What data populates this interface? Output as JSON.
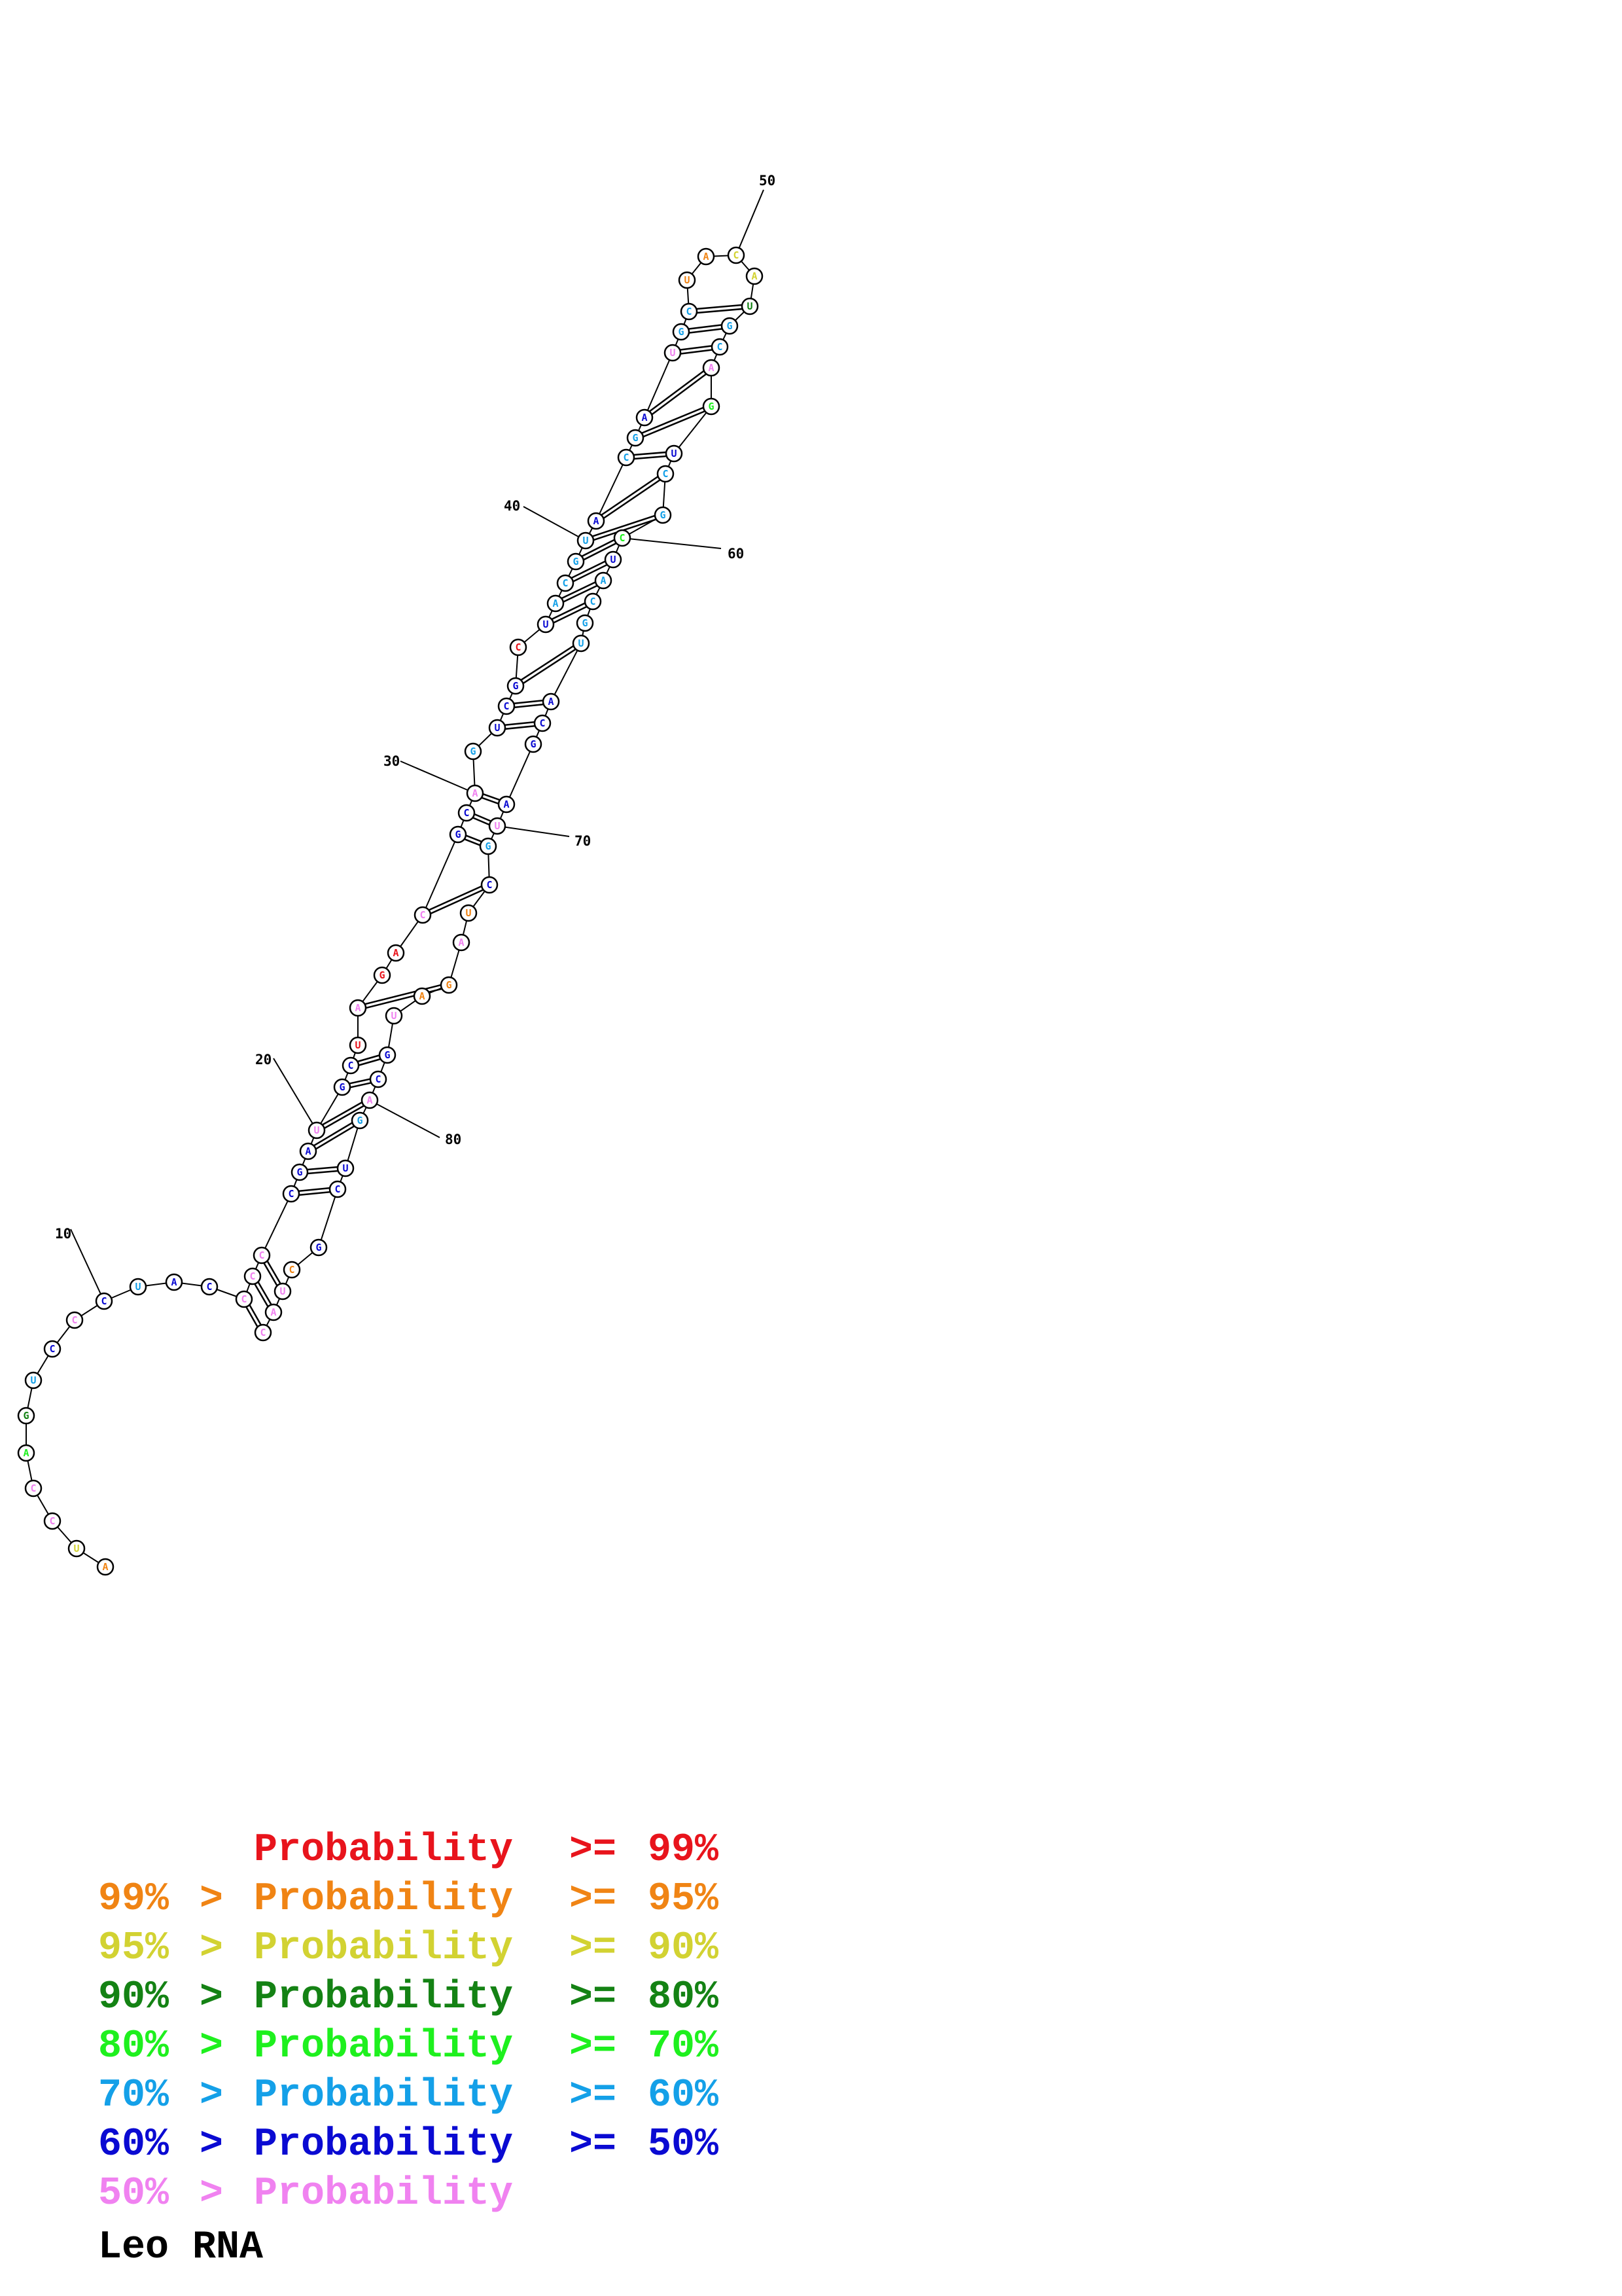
{
  "title": "Leo RNA",
  "legend": [
    {
      "lo": "",
      "gt": "",
      "word": "Probability",
      "ge": ">=",
      "hi": "99%",
      "color": "#e8141c"
    },
    {
      "lo": "99%",
      "gt": ">",
      "word": "Probability",
      "ge": ">=",
      "hi": "95%",
      "color": "#f08414"
    },
    {
      "lo": "95%",
      "gt": ">",
      "word": "Probability",
      "ge": ">=",
      "hi": "90%",
      "color": "#d2d232"
    },
    {
      "lo": "90%",
      "gt": ">",
      "word": "Probability",
      "ge": ">=",
      "hi": "80%",
      "color": "#148214"
    },
    {
      "lo": "80%",
      "gt": ">",
      "word": "Probability",
      "ge": ">=",
      "hi": "70%",
      "color": "#1ef01e"
    },
    {
      "lo": "70%",
      "gt": ">",
      "word": "Probability",
      "ge": ">=",
      "hi": "60%",
      "color": "#14a0e8"
    },
    {
      "lo": "60%",
      "gt": ">",
      "word": "Probability",
      "ge": ">=",
      "hi": "50%",
      "color": "#0a0ad2"
    },
    {
      "lo": "50%",
      "gt": ">",
      "word": "Probability",
      "ge": "",
      "hi": "",
      "color": "#f082f0"
    }
  ],
  "position_labels": [
    "10",
    "20",
    "30",
    "40",
    "50",
    "60",
    "70",
    "80"
  ],
  "sequence": [
    {
      "n": 1,
      "base": "A",
      "cls": 1
    },
    {
      "n": 2,
      "base": "U",
      "cls": 2
    },
    {
      "n": 3,
      "base": "C",
      "cls": 7
    },
    {
      "n": 4,
      "base": "C",
      "cls": 7
    },
    {
      "n": 5,
      "base": "A",
      "cls": 4
    },
    {
      "n": 6,
      "base": "G",
      "cls": 3
    },
    {
      "n": 7,
      "base": "U",
      "cls": 5
    },
    {
      "n": 8,
      "base": "C",
      "cls": 6
    },
    {
      "n": 9,
      "base": "C",
      "cls": 7
    },
    {
      "n": 10,
      "base": "C",
      "cls": 6
    },
    {
      "n": 11,
      "base": "U",
      "cls": 5
    },
    {
      "n": 12,
      "base": "A",
      "cls": 6
    },
    {
      "n": 13,
      "base": "C",
      "cls": 6
    },
    {
      "n": 14,
      "base": "C",
      "cls": 7
    },
    {
      "n": 15,
      "base": "C",
      "cls": 7
    },
    {
      "n": 16,
      "base": "C",
      "cls": 7
    },
    {
      "n": 17,
      "base": "C",
      "cls": 6
    },
    {
      "n": 18,
      "base": "G",
      "cls": 6
    },
    {
      "n": 19,
      "base": "A",
      "cls": 6
    },
    {
      "n": 20,
      "base": "U",
      "cls": 7
    },
    {
      "n": 21,
      "base": "G",
      "cls": 6
    },
    {
      "n": 22,
      "base": "C",
      "cls": 6
    },
    {
      "n": 23,
      "base": "U",
      "cls": 0
    },
    {
      "n": 24,
      "base": "A",
      "cls": 7
    },
    {
      "n": 25,
      "base": "G",
      "cls": 0
    },
    {
      "n": 26,
      "base": "A",
      "cls": 0
    },
    {
      "n": 27,
      "base": "C",
      "cls": 7
    },
    {
      "n": 28,
      "base": "G",
      "cls": 6
    },
    {
      "n": 29,
      "base": "C",
      "cls": 6
    },
    {
      "n": 30,
      "base": "A",
      "cls": 7
    },
    {
      "n": 31,
      "base": "G",
      "cls": 5
    },
    {
      "n": 32,
      "base": "U",
      "cls": 6
    },
    {
      "n": 33,
      "base": "C",
      "cls": 6
    },
    {
      "n": 34,
      "base": "G",
      "cls": 6
    },
    {
      "n": 35,
      "base": "C",
      "cls": 0
    },
    {
      "n": 36,
      "base": "U",
      "cls": 6
    },
    {
      "n": 37,
      "base": "A",
      "cls": 5
    },
    {
      "n": 38,
      "base": "C",
      "cls": 5
    },
    {
      "n": 39,
      "base": "G",
      "cls": 5
    },
    {
      "n": 40,
      "base": "U",
      "cls": 5
    },
    {
      "n": 41,
      "base": "A",
      "cls": 6
    },
    {
      "n": 42,
      "base": "C",
      "cls": 5
    },
    {
      "n": 43,
      "base": "G",
      "cls": 5
    },
    {
      "n": 44,
      "base": "A",
      "cls": 6
    },
    {
      "n": 45,
      "base": "U",
      "cls": 7
    },
    {
      "n": 46,
      "base": "G",
      "cls": 5
    },
    {
      "n": 47,
      "base": "C",
      "cls": 5
    },
    {
      "n": 48,
      "base": "U",
      "cls": 1
    },
    {
      "n": 49,
      "base": "A",
      "cls": 1
    },
    {
      "n": 50,
      "base": "C",
      "cls": 2
    },
    {
      "n": 51,
      "base": "A",
      "cls": 2
    },
    {
      "n": 52,
      "base": "U",
      "cls": 3
    },
    {
      "n": 53,
      "base": "G",
      "cls": 5
    },
    {
      "n": 54,
      "base": "C",
      "cls": 5
    },
    {
      "n": 55,
      "base": "A",
      "cls": 7
    },
    {
      "n": 56,
      "base": "G",
      "cls": 4
    },
    {
      "n": 57,
      "base": "U",
      "cls": 6
    },
    {
      "n": 58,
      "base": "C",
      "cls": 5
    },
    {
      "n": 59,
      "base": "G",
      "cls": 5
    },
    {
      "n": 60,
      "base": "C",
      "cls": 4
    },
    {
      "n": 61,
      "base": "U",
      "cls": 6
    },
    {
      "n": 62,
      "base": "A",
      "cls": 5
    },
    {
      "n": 63,
      "base": "C",
      "cls": 5
    },
    {
      "n": 64,
      "base": "G",
      "cls": 5
    },
    {
      "n": 65,
      "base": "U",
      "cls": 5
    },
    {
      "n": 66,
      "base": "A",
      "cls": 6
    },
    {
      "n": 67,
      "base": "C",
      "cls": 6
    },
    {
      "n": 68,
      "base": "G",
      "cls": 6
    },
    {
      "n": 69,
      "base": "A",
      "cls": 6
    },
    {
      "n": 70,
      "base": "U",
      "cls": 7
    },
    {
      "n": 71,
      "base": "G",
      "cls": 5
    },
    {
      "n": 72,
      "base": "C",
      "cls": 6
    },
    {
      "n": 73,
      "base": "U",
      "cls": 1
    },
    {
      "n": 74,
      "base": "A",
      "cls": 7
    },
    {
      "n": 75,
      "base": "G",
      "cls": 1
    },
    {
      "n": 76,
      "base": "A",
      "cls": 1
    },
    {
      "n": 77,
      "base": "U",
      "cls": 7
    },
    {
      "n": 78,
      "base": "G",
      "cls": 6
    },
    {
      "n": 79,
      "base": "C",
      "cls": 6
    },
    {
      "n": 80,
      "base": "A",
      "cls": 7
    },
    {
      "n": 81,
      "base": "G",
      "cls": 5
    },
    {
      "n": 82,
      "base": "U",
      "cls": 6
    },
    {
      "n": 83,
      "base": "C",
      "cls": 6
    },
    {
      "n": 84,
      "base": "G",
      "cls": 6
    },
    {
      "n": 85,
      "base": "C",
      "cls": 1
    },
    {
      "n": 86,
      "base": "U",
      "cls": 7
    },
    {
      "n": 87,
      "base": "A",
      "cls": 7
    },
    {
      "n": 88,
      "base": "C",
      "cls": 7
    }
  ],
  "pairs": [
    [
      14,
      88
    ],
    [
      15,
      87
    ],
    [
      16,
      86
    ],
    [
      17,
      83
    ],
    [
      18,
      82
    ],
    [
      19,
      81
    ],
    [
      20,
      80
    ],
    [
      21,
      79
    ],
    [
      22,
      78
    ],
    [
      24,
      75
    ],
    [
      27,
      72
    ],
    [
      28,
      71
    ],
    [
      29,
      70
    ],
    [
      30,
      69
    ],
    [
      32,
      67
    ],
    [
      33,
      66
    ],
    [
      34,
      65
    ],
    [
      36,
      63
    ],
    [
      37,
      62
    ],
    [
      38,
      61
    ],
    [
      39,
      60
    ],
    [
      40,
      59
    ],
    [
      41,
      58
    ],
    [
      42,
      57
    ],
    [
      43,
      56
    ],
    [
      44,
      55
    ],
    [
      45,
      54
    ],
    [
      46,
      53
    ],
    [
      47,
      52
    ]
  ]
}
